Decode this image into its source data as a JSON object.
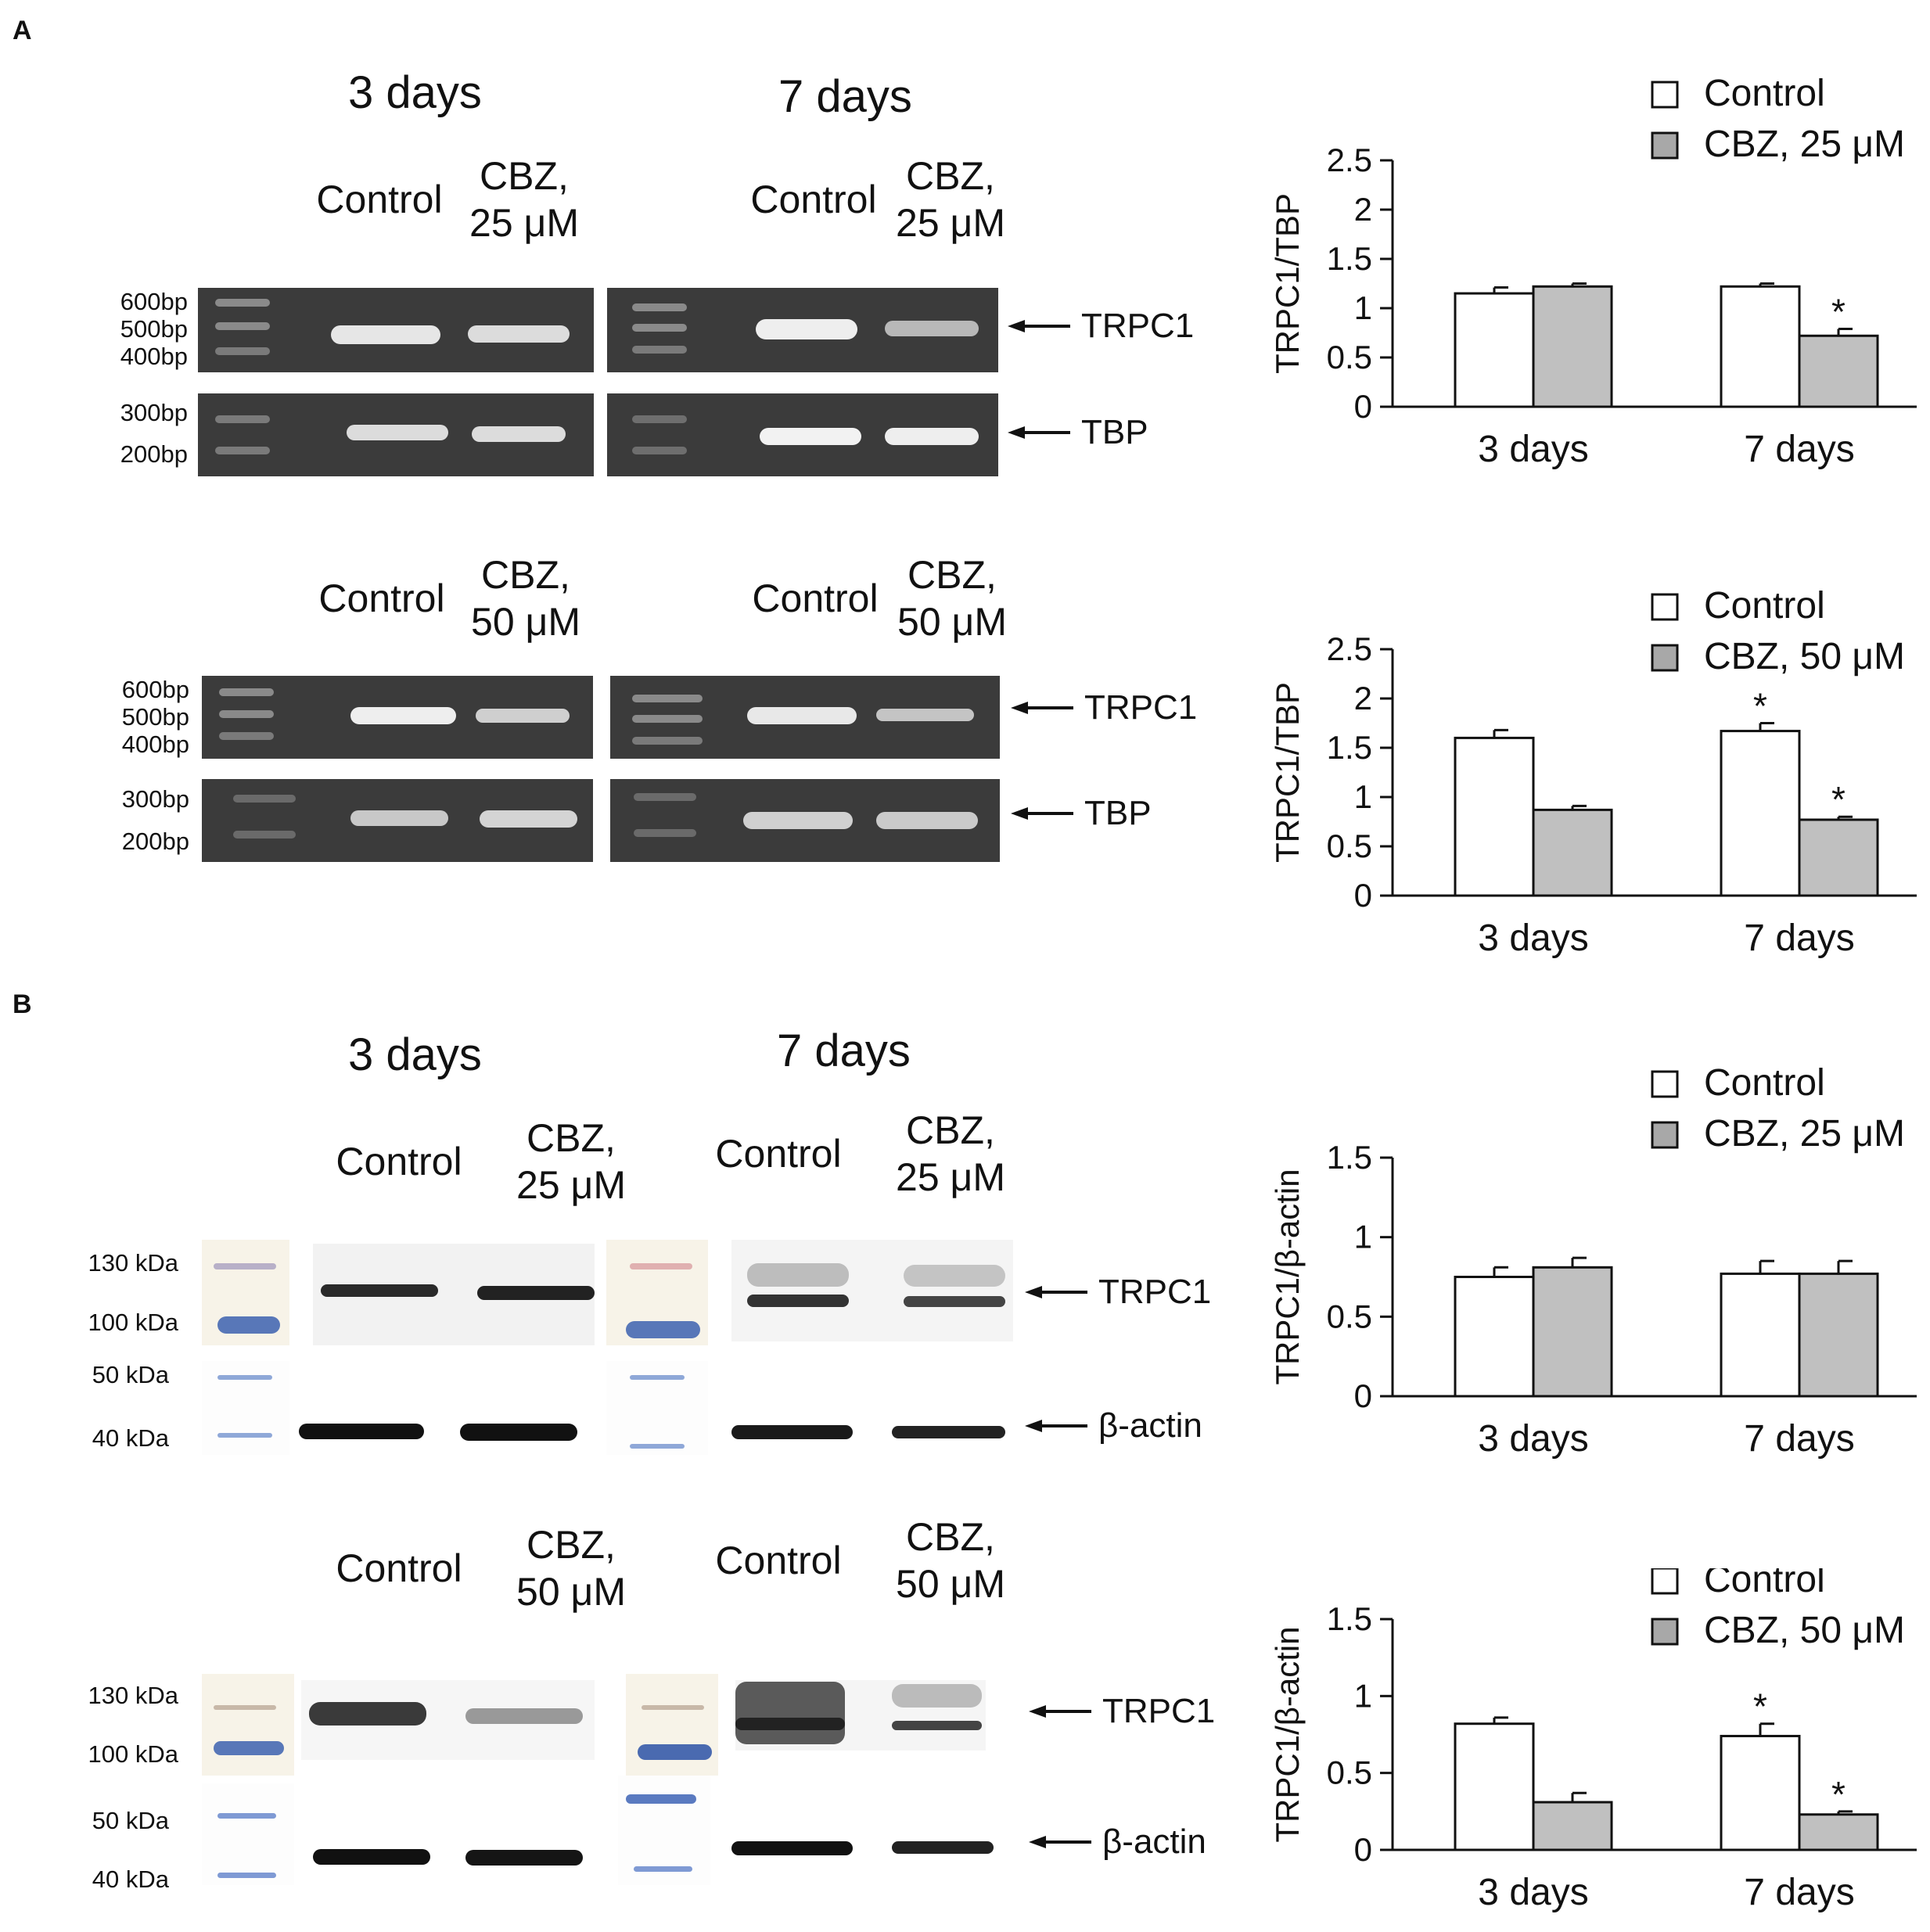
{
  "panels": {
    "A": {
      "letter": "A",
      "day_titles": [
        "3 days",
        "7 days"
      ],
      "rows": [
        {
          "lanes_3d": [
            {
              "name": "Control"
            },
            {
              "name": "CBZ,",
              "name2": "25 μM"
            }
          ],
          "lanes_7d": [
            {
              "name": "Control"
            },
            {
              "name": "CBZ,",
              "name2": "25 μM"
            }
          ],
          "ladder_trpc1": [
            "600bp",
            "500bp",
            "400bp"
          ],
          "ladder_tbp": [
            "300bp",
            "200bp"
          ],
          "targets": [
            "TRPC1",
            "TBP"
          ]
        },
        {
          "lanes_3d": [
            {
              "name": "Control"
            },
            {
              "name": "CBZ,",
              "name2": "50 μM"
            }
          ],
          "lanes_7d": [
            {
              "name": "Control"
            },
            {
              "name": "CBZ,",
              "name2": "50 μM"
            }
          ],
          "ladder_trpc1": [
            "600bp",
            "500bp",
            "400bp"
          ],
          "ladder_tbp": [
            "300bp",
            "200bp"
          ],
          "targets": [
            "TRPC1",
            "TBP"
          ]
        }
      ]
    },
    "B": {
      "letter": "B",
      "day_titles": [
        "3 days",
        "7 days"
      ],
      "rows": [
        {
          "lanes_3d": [
            {
              "name": "Control"
            },
            {
              "name": "CBZ,",
              "name2": "25 μM"
            }
          ],
          "lanes_7d": [
            {
              "name": "Control"
            },
            {
              "name": "CBZ,",
              "name2": "25 μM"
            }
          ],
          "ladder": [
            "130 kDa",
            "100 kDa",
            "50 kDa",
            "40 kDa"
          ],
          "targets": [
            "TRPC1",
            "β-actin"
          ]
        },
        {
          "lanes_3d": [
            {
              "name": "Control"
            },
            {
              "name": "CBZ,",
              "name2": "50 μM"
            }
          ],
          "lanes_7d": [
            {
              "name": "Control"
            },
            {
              "name": "CBZ,",
              "name2": "50 μM"
            }
          ],
          "ladder": [
            "130 kDa",
            "100 kDa",
            "50 kDa",
            "40 kDa"
          ],
          "targets": [
            "TRPC1",
            "β-actin"
          ]
        }
      ]
    }
  },
  "chart_data": [
    {
      "type": "bar",
      "ylabel": "TRPC1/TBP",
      "categories": [
        "3 days",
        "7 days"
      ],
      "ylim": [
        0,
        2.5
      ],
      "yticks": [
        "0",
        "0.5",
        "1",
        "1.5",
        "2",
        "2.5"
      ],
      "series": [
        {
          "name": "Control",
          "values": [
            1.15,
            1.22
          ],
          "errors": [
            0.06,
            0.03
          ],
          "color": "#ffffff"
        },
        {
          "name": "CBZ, 25 μM",
          "values": [
            1.22,
            0.72
          ],
          "errors": [
            0.03,
            0.07
          ],
          "color": "#c0c0c0"
        }
      ],
      "significance": [
        [
          "",
          ""
        ],
        [
          "",
          "*"
        ]
      ],
      "legend": "top-right"
    },
    {
      "type": "bar",
      "ylabel": "TRPC1/TBP",
      "categories": [
        "3 days",
        "7 days"
      ],
      "ylim": [
        0,
        2.5
      ],
      "yticks": [
        "0",
        "0.5",
        "1",
        "1.5",
        "2",
        "2.5"
      ],
      "series": [
        {
          "name": "Control",
          "values": [
            1.6,
            1.67
          ],
          "errors": [
            0.08,
            0.08
          ],
          "color": "#ffffff"
        },
        {
          "name": "CBZ, 50 μM",
          "values": [
            0.87,
            0.77
          ],
          "errors": [
            0.04,
            0.03
          ],
          "color": "#c0c0c0"
        }
      ],
      "significance": [
        [
          "",
          "*"
        ],
        [
          "",
          "*"
        ]
      ],
      "legend": "top-right"
    },
    {
      "type": "bar",
      "ylabel": "TRPC1/β-actin",
      "categories": [
        "3 days",
        "7 days"
      ],
      "ylim": [
        0,
        1.5
      ],
      "yticks": [
        "0",
        "0.5",
        "1",
        "1.5"
      ],
      "series": [
        {
          "name": "Control",
          "values": [
            0.75,
            0.77
          ],
          "errors": [
            0.06,
            0.08
          ],
          "color": "#ffffff"
        },
        {
          "name": "CBZ, 25 μM",
          "values": [
            0.81,
            0.77
          ],
          "errors": [
            0.06,
            0.08
          ],
          "color": "#c0c0c0"
        }
      ],
      "significance": [
        [
          "",
          ""
        ],
        [
          "",
          ""
        ]
      ],
      "legend": "top-right"
    },
    {
      "type": "bar",
      "ylabel": "TRPC1/β-actin",
      "categories": [
        "3 days",
        "7 days"
      ],
      "ylim": [
        0,
        1.5
      ],
      "yticks": [
        "0",
        "0.5",
        "1",
        "1.5"
      ],
      "series": [
        {
          "name": "Control",
          "values": [
            0.82,
            0.74
          ],
          "errors": [
            0.04,
            0.08
          ],
          "color": "#ffffff"
        },
        {
          "name": "CBZ, 50 μM",
          "values": [
            0.31,
            0.23
          ],
          "errors": [
            0.06,
            0.02
          ],
          "color": "#c0c0c0"
        }
      ],
      "significance": [
        [
          "",
          "*"
        ],
        [
          "",
          "*"
        ]
      ],
      "legend": "top-right"
    }
  ]
}
